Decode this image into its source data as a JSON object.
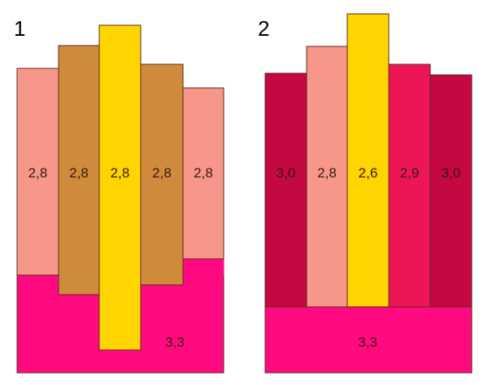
{
  "colors": {
    "salmon": "#f7978a",
    "brown": "#d08a3c",
    "yellow": "#ffd400",
    "magenta": "#ff0a80",
    "crimson": "#c40842",
    "rose": "#ee1556",
    "outline": "#5a2a1a",
    "label": "#3a1a10"
  },
  "diagrams": [
    {
      "number": "1",
      "base_label": "3,3",
      "bars": [
        {
          "label": "2,8",
          "color": "salmon"
        },
        {
          "label": "2,8",
          "color": "brown"
        },
        {
          "label": "2,8",
          "color": "yellow"
        },
        {
          "label": "2,8",
          "color": "brown"
        },
        {
          "label": "2,8",
          "color": "salmon"
        }
      ]
    },
    {
      "number": "2",
      "base_label": "3,3",
      "bars": [
        {
          "label": "3,0",
          "color": "crimson"
        },
        {
          "label": "2,8",
          "color": "salmon"
        },
        {
          "label": "2,6",
          "color": "yellow"
        },
        {
          "label": "2,9",
          "color": "rose"
        },
        {
          "label": "3,0",
          "color": "crimson"
        }
      ]
    }
  ]
}
